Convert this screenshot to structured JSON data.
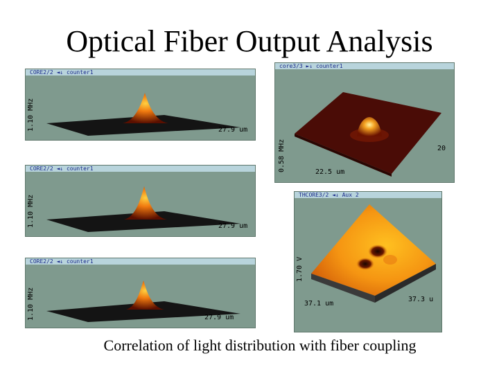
{
  "slide": {
    "title": "Optical Fiber Output Analysis",
    "caption": "Correlation of light distribution with fiber coupling"
  },
  "panels": [
    {
      "header": "CORE2/2  ◄↓  counter1",
      "y_label": "1.10 MHz",
      "x_label": "27.9 um"
    },
    {
      "header": "CORE2/2  ◄↓  counter1",
      "y_label": "1.10 MHz",
      "x_label": "27.9 um"
    },
    {
      "header": "CORE2/2  ◄↓  counter1",
      "y_label": "1.10 MHz",
      "x_label": "27.9 um"
    },
    {
      "header": "core3/3  ►↓  counter1",
      "y_label": "0.58 MHz",
      "x_label": "22.5 um",
      "z_label": "20"
    },
    {
      "header": "THCORE3/2  ◄↓  Aux 2",
      "y_label": "1.70 V",
      "x_label": "37.1 um",
      "z_label": "37.3 u"
    }
  ]
}
